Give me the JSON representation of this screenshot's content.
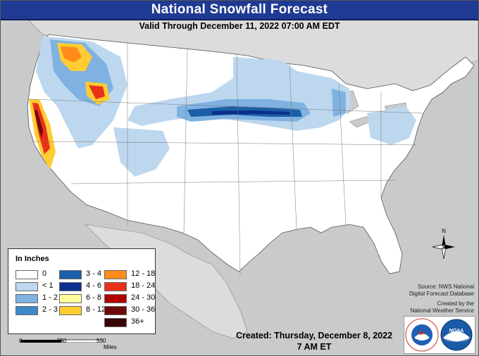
{
  "header": {
    "title": "National Snowfall Forecast",
    "subtitle": "Valid Through December 11, 2022 07:00 AM EDT"
  },
  "legend": {
    "title": "In Inches",
    "items": [
      {
        "label": "0",
        "color": "#ffffff"
      },
      {
        "label": "< 1",
        "color": "#bdd7ee"
      },
      {
        "label": "1 - 2",
        "color": "#7fb2e0"
      },
      {
        "label": "2 - 3",
        "color": "#3e88c9"
      },
      {
        "label": "3 - 4",
        "color": "#1c5ea8"
      },
      {
        "label": "4 - 6",
        "color": "#0b2f8c"
      },
      {
        "label": "6 - 8",
        "color": "#ffff99"
      },
      {
        "label": "8 - 12",
        "color": "#ffcc33"
      },
      {
        "label": "12 - 18",
        "color": "#ff8c1a"
      },
      {
        "label": "18 - 24",
        "color": "#e8301a"
      },
      {
        "label": "24 - 30",
        "color": "#b00000"
      },
      {
        "label": "30 - 36",
        "color": "#6e0a0a"
      },
      {
        "label": "36+",
        "color": "#3a0505"
      }
    ]
  },
  "scale": {
    "labels": [
      "0",
      "250",
      "500"
    ],
    "unit": "Miles"
  },
  "compass": {
    "label": "N"
  },
  "source": [
    "Source: NWS National",
    "Digital Forecast Database"
  ],
  "created_by": [
    "Created by the",
    "National Weather Service"
  ],
  "created": {
    "date": "Created: Thursday, December 8, 2022",
    "time": "7 AM ET"
  },
  "logos": {
    "nws_ring": "NATIONAL WEATHER SERVICE",
    "noaa": "NOAA"
  },
  "colors": {
    "title_bar": "#1f3a93",
    "land": "#ffffff",
    "water": "#c8cacc",
    "foreign_land": "#dcdcdc"
  }
}
